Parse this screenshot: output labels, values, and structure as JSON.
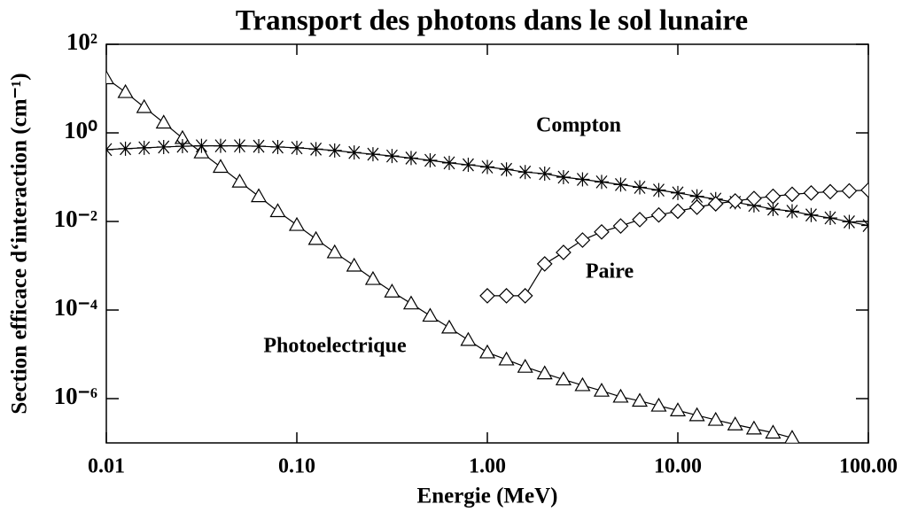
{
  "chart_data": {
    "type": "line",
    "title": "Transport des photons dans le sol lunaire",
    "x_label": "Energie (MeV)",
    "y_label": "Section efficace d‘interaction (cm⁻¹)",
    "xlog": true,
    "ylog": true,
    "xlim": [
      0.01,
      100
    ],
    "ylim": [
      1e-07,
      100
    ],
    "xticks": [
      {
        "value": 0.01,
        "label": "0.01"
      },
      {
        "value": 0.1,
        "label": "0.10"
      },
      {
        "value": 1,
        "label": "1.00"
      },
      {
        "value": 10,
        "label": "10.00"
      },
      {
        "value": 100,
        "label": "100.00"
      }
    ],
    "yticks": [
      {
        "value": 1e-06,
        "label": "10⁻⁶"
      },
      {
        "value": 0.0001,
        "label": "10⁻⁴"
      },
      {
        "value": 0.01,
        "label": "10⁻²"
      },
      {
        "value": 1,
        "label": "10⁰"
      },
      {
        "value": 100,
        "label": "10²"
      }
    ],
    "series": [
      {
        "name": "Photoelectrique",
        "color": "#000000",
        "marker": "triangle",
        "x": [
          0.01,
          0.0126,
          0.0158,
          0.02,
          0.0251,
          0.0316,
          0.0398,
          0.0501,
          0.0631,
          0.0794,
          0.1,
          0.126,
          0.158,
          0.2,
          0.251,
          0.316,
          0.398,
          0.501,
          0.631,
          0.794,
          1,
          1.26,
          1.58,
          2,
          2.51,
          3.16,
          3.98,
          5.01,
          6.31,
          7.94,
          10,
          12.6,
          15.8,
          20,
          25.1,
          31.6,
          39.8
        ],
        "values": [
          17,
          8.3,
          3.8,
          1.7,
          0.76,
          0.36,
          0.17,
          0.079,
          0.037,
          0.017,
          0.0083,
          0.004,
          0.002,
          0.001,
          0.0005,
          0.00026,
          0.00014,
          7.4e-05,
          4e-05,
          2.1e-05,
          1.1e-05,
          7.6e-06,
          5.2e-06,
          3.7e-06,
          2.7e-06,
          2e-06,
          1.5e-06,
          1.1e-06,
          8.9e-07,
          6.9e-07,
          5.4e-07,
          4.2e-07,
          3.3e-07,
          2.6e-07,
          2.1e-07,
          1.7e-07,
          1.3e-07
        ]
      },
      {
        "name": "Compton",
        "color": "#000000",
        "marker": "asterisk",
        "x": [
          0.01,
          0.0126,
          0.0158,
          0.02,
          0.0251,
          0.0316,
          0.0398,
          0.0501,
          0.0631,
          0.0794,
          0.1,
          0.126,
          0.158,
          0.2,
          0.251,
          0.316,
          0.398,
          0.501,
          0.631,
          0.794,
          1,
          1.26,
          1.58,
          2,
          2.51,
          3.16,
          3.98,
          5.01,
          6.31,
          7.94,
          10,
          12.6,
          15.8,
          20,
          25.1,
          31.6,
          39.8,
          50.1,
          63.1,
          79.4,
          100
        ],
        "values": [
          0.42,
          0.44,
          0.46,
          0.48,
          0.5,
          0.51,
          0.51,
          0.51,
          0.5,
          0.48,
          0.46,
          0.43,
          0.4,
          0.36,
          0.33,
          0.3,
          0.27,
          0.24,
          0.21,
          0.19,
          0.17,
          0.15,
          0.13,
          0.12,
          0.1,
          0.089,
          0.078,
          0.068,
          0.059,
          0.051,
          0.044,
          0.037,
          0.032,
          0.027,
          0.023,
          0.019,
          0.017,
          0.014,
          0.012,
          0.0098,
          0.0081
        ]
      },
      {
        "name": "Paire",
        "color": "#000000",
        "marker": "diamond",
        "x": [
          1,
          1.26,
          1.58,
          2,
          2.51,
          3.16,
          3.98,
          5.01,
          6.31,
          7.94,
          10,
          12.6,
          15.8,
          20,
          25.1,
          31.6,
          39.8,
          50.1,
          63.1,
          79.4,
          100
        ],
        "values": [
          0.00021,
          0.00021,
          0.00021,
          0.0011,
          0.002,
          0.0038,
          0.0058,
          0.0079,
          0.011,
          0.014,
          0.017,
          0.021,
          0.025,
          0.029,
          0.033,
          0.037,
          0.041,
          0.044,
          0.047,
          0.049,
          0.051
        ]
      }
    ]
  }
}
